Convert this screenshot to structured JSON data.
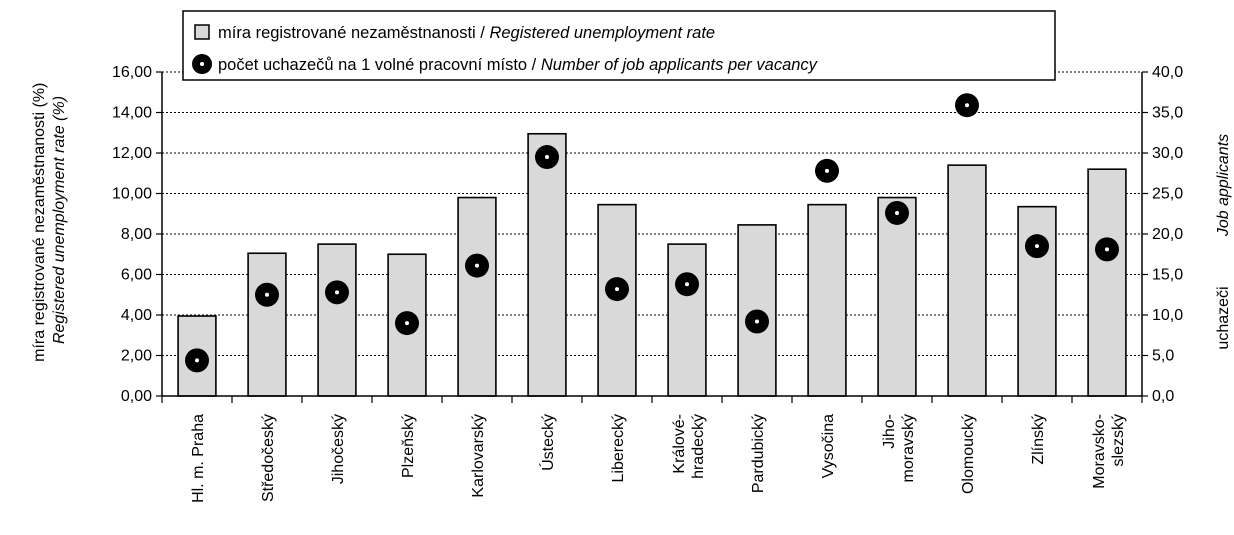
{
  "chart_data": {
    "type": "bar",
    "categories": [
      [
        "Hl. m. Praha"
      ],
      [
        "Středočeský"
      ],
      [
        "Jihočeský"
      ],
      [
        "Plzeňský"
      ],
      [
        "Karlovarský"
      ],
      [
        "Ústecký"
      ],
      [
        "Liberecký"
      ],
      [
        "Králové-",
        "hradecký"
      ],
      [
        "Pardubický"
      ],
      [
        "Vysočina"
      ],
      [
        "Jiho-",
        "moravský"
      ],
      [
        "Olomoucký"
      ],
      [
        "Zlínský"
      ],
      [
        "Moravsko-",
        "slezský"
      ]
    ],
    "series": [
      {
        "name_normal": "míra registrované nezaměstnanosti / ",
        "name_italic": "Registered unemployment rate",
        "type": "bar",
        "axis": "left",
        "color": "#d9d9d9",
        "values": [
          3.95,
          7.05,
          7.5,
          7.0,
          9.8,
          12.95,
          9.45,
          7.5,
          8.45,
          9.45,
          9.8,
          11.4,
          9.35,
          11.2
        ]
      },
      {
        "name_normal": "počet uchazečů na 1 volné pracovní místo / ",
        "name_italic": "Number of job applicants per vacancy",
        "type": "scatter",
        "axis": "right",
        "color": "#000000",
        "values": [
          4.4,
          12.5,
          12.8,
          9.0,
          16.1,
          29.5,
          13.2,
          13.8,
          9.2,
          27.8,
          22.6,
          35.9,
          18.5,
          18.1
        ]
      }
    ],
    "left_axis": {
      "label_normal": "míra registrované nezaměstnanosti (%)",
      "label_italic": "Registered unemployment rate (%)",
      "ylim": [
        0,
        16
      ],
      "ticks": [
        "0,00",
        "2,00",
        "4,00",
        "6,00",
        "8,00",
        "10,00",
        "12,00",
        "14,00",
        "16,00"
      ]
    },
    "right_axis": {
      "label_normal": "uchazeči",
      "label_italic": "Job applicants",
      "ylim": [
        0,
        40
      ],
      "ticks": [
        "0,0",
        "5,0",
        "10,0",
        "15,0",
        "20,0",
        "25,0",
        "30,0",
        "35,0",
        "40,0"
      ]
    },
    "grid": true,
    "legend": "top-center"
  }
}
